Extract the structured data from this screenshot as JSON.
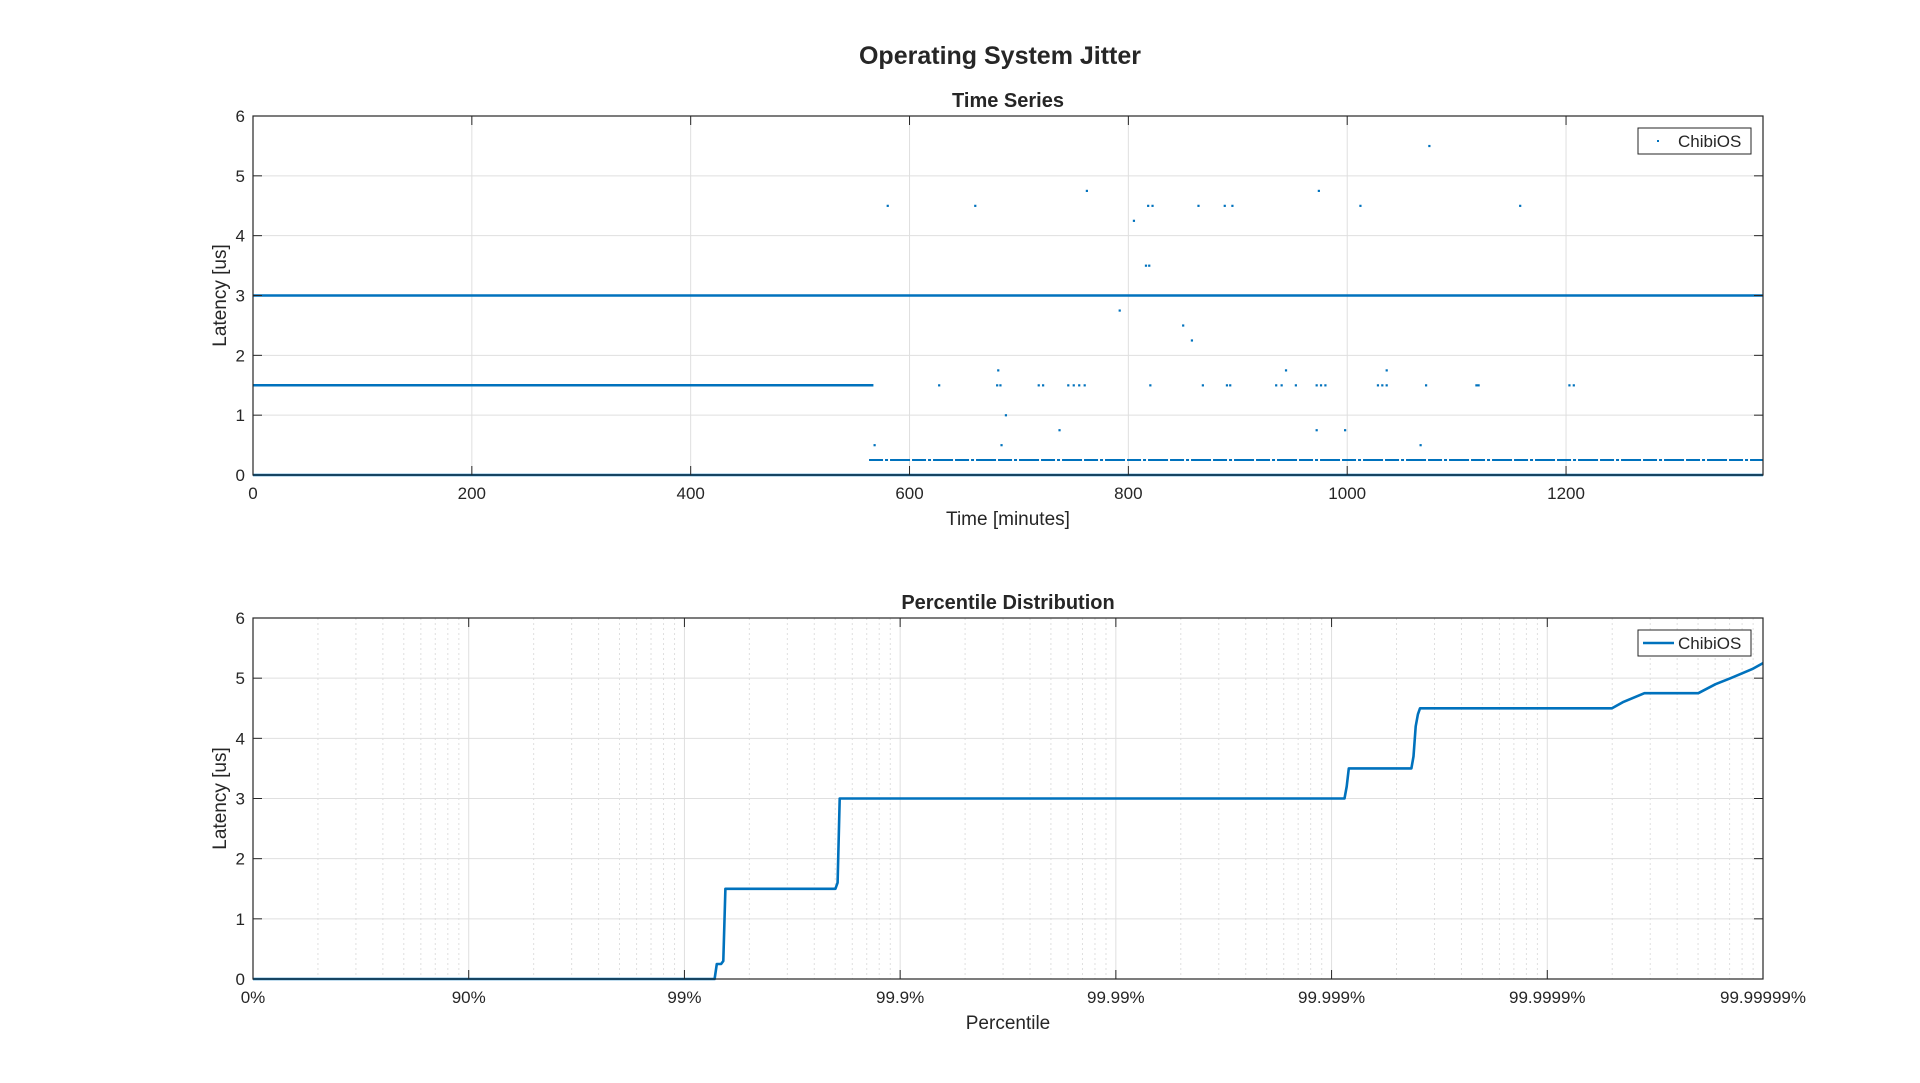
{
  "figure": {
    "title": "Operating System Jitter"
  },
  "colors": {
    "series": "#0072BD",
    "axis": "#262626",
    "grid": "#dfdfdf",
    "legend_border": "#262626"
  },
  "chart_data": [
    {
      "type": "scatter",
      "title": "Time Series",
      "xlabel": "Time [minutes]",
      "ylabel": "Latency [us]",
      "xlim": [
        0,
        1380
      ],
      "ylim": [
        0,
        6
      ],
      "xticks": [
        0,
        200,
        400,
        600,
        800,
        1000,
        1200
      ],
      "yticks": [
        0,
        1,
        2,
        3,
        4,
        5,
        6
      ],
      "grid": true,
      "legend": {
        "placement": "top-right",
        "entries": [
          "ChibiOS"
        ]
      },
      "series": [
        {
          "name": "ChibiOS",
          "bands": [
            {
              "y": 0,
              "x": [
                0,
                1380
              ]
            },
            {
              "y": 3,
              "x": [
                0,
                1380
              ]
            },
            {
              "y": 1.5,
              "x": [
                0,
                567
              ]
            },
            {
              "y": 0.25,
              "x": [
                563,
                1380
              ]
            }
          ],
          "points": [
            [
              580,
              4.5
            ],
            [
              660,
              4.5
            ],
            [
              762,
              4.75
            ],
            [
              805,
              4.25
            ],
            [
              818,
              4.5
            ],
            [
              822,
              4.5
            ],
            [
              864,
              4.5
            ],
            [
              888,
              4.5
            ],
            [
              895,
              4.5
            ],
            [
              974,
              4.75
            ],
            [
              1012,
              4.5
            ],
            [
              1075,
              5.5
            ],
            [
              1158,
              4.5
            ],
            [
              816,
              3.5
            ],
            [
              819,
              3.5
            ],
            [
              792,
              2.75
            ],
            [
              850,
              2.5
            ],
            [
              858,
              2.25
            ],
            [
              681,
              1.75
            ],
            [
              944,
              1.75
            ],
            [
              1036,
              1.75
            ],
            [
              627,
              1.5
            ],
            [
              680,
              1.5
            ],
            [
              683,
              1.5
            ],
            [
              718,
              1.5
            ],
            [
              722,
              1.5
            ],
            [
              745,
              1.5
            ],
            [
              750,
              1.5
            ],
            [
              755,
              1.5
            ],
            [
              760,
              1.5
            ],
            [
              820,
              1.5
            ],
            [
              868,
              1.5
            ],
            [
              890,
              1.5
            ],
            [
              893,
              1.5
            ],
            [
              935,
              1.5
            ],
            [
              940,
              1.5
            ],
            [
              953,
              1.5
            ],
            [
              972,
              1.5
            ],
            [
              976,
              1.5
            ],
            [
              980,
              1.5
            ],
            [
              1028,
              1.5
            ],
            [
              1032,
              1.5
            ],
            [
              1036,
              1.5
            ],
            [
              1072,
              1.5
            ],
            [
              1118,
              1.5
            ],
            [
              1120,
              1.5
            ],
            [
              1203,
              1.5
            ],
            [
              1207,
              1.5
            ],
            [
              688,
              1.0
            ],
            [
              737,
              0.75
            ],
            [
              972,
              0.75
            ],
            [
              998,
              0.75
            ],
            [
              568,
              0.5
            ],
            [
              684,
              0.5
            ],
            [
              1067,
              0.5
            ]
          ]
        }
      ]
    },
    {
      "type": "line",
      "title": "Percentile Distribution",
      "xlabel": "Percentile",
      "ylabel": "Latency [us]",
      "x_scale": "log-nines",
      "xlim": [
        0,
        7
      ],
      "ylim": [
        0,
        6
      ],
      "xtick_labels": [
        "0%",
        "90%",
        "99%",
        "99.9%",
        "99.99%",
        "99.999%",
        "99.9999%",
        "99.99999%"
      ],
      "yticks": [
        0,
        1,
        2,
        3,
        4,
        5,
        6
      ],
      "grid": true,
      "legend": {
        "placement": "top-right",
        "entries": [
          "ChibiOS"
        ]
      },
      "series": [
        {
          "name": "ChibiOS",
          "x_nines": [
            0,
            2.14,
            2.15,
            2.17,
            2.18,
            2.19,
            2.2,
            2.7,
            2.71,
            2.72,
            2.73,
            5.06,
            5.07,
            5.08,
            5.09,
            5.37,
            5.38,
            5.39,
            5.4,
            5.41,
            5.42,
            6.3,
            6.35,
            6.45,
            6.5,
            6.7,
            6.78,
            6.85,
            6.95,
            7.0
          ],
          "y": [
            0,
            0,
            0.25,
            0.25,
            0.3,
            1.5,
            1.5,
            1.5,
            1.6,
            3.0,
            3.0,
            3.0,
            3.2,
            3.5,
            3.5,
            3.5,
            3.7,
            4.2,
            4.4,
            4.5,
            4.5,
            4.5,
            4.6,
            4.75,
            4.75,
            4.75,
            4.9,
            5.0,
            5.15,
            5.25
          ]
        }
      ]
    }
  ]
}
